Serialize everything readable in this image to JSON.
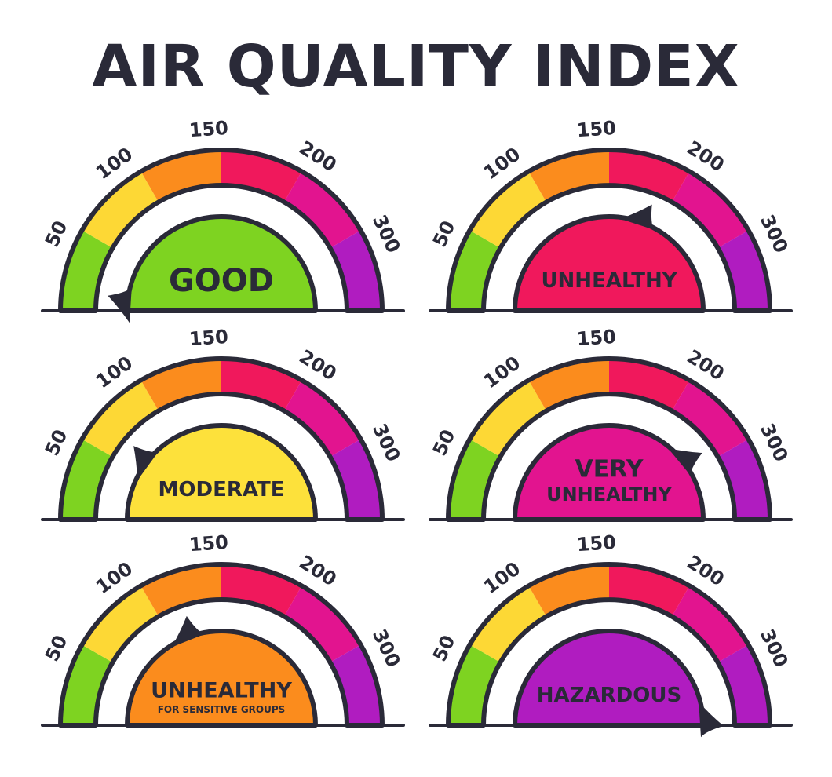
{
  "title": "AIR QUALITY INDEX",
  "scale": {
    "ticks": [
      "50",
      "100",
      "150",
      "200",
      "300"
    ],
    "bands": [
      {
        "color": "#7ed321"
      },
      {
        "color": "#fdd835"
      },
      {
        "color": "#fb8c1d"
      },
      {
        "color": "#f0185c"
      },
      {
        "color": "#e2148f"
      },
      {
        "color": "#b01cc0"
      }
    ],
    "outline_color": "#2a2a38"
  },
  "gauges": [
    {
      "label_lines": [
        "GOOD"
      ],
      "color": "#7ed321",
      "needle_level": 0.02
    },
    {
      "label_lines": [
        "UNHEALTHY"
      ],
      "color": "#f0185c",
      "needle_level": 0.6
    },
    {
      "label_lines": [
        "MODERATE"
      ],
      "color": "#fde13b",
      "needle_level": 0.2
    },
    {
      "label_lines": [
        "VERY",
        "UNHEALTHY"
      ],
      "color": "#e2148f",
      "needle_level": 0.78
    },
    {
      "label_lines": [
        "UNHEALTHY",
        "FOR SENSITIVE GROUPS"
      ],
      "color": "#fb8c1d",
      "needle_level": 0.38
    },
    {
      "label_lines": [
        "HAZARDOUS"
      ],
      "color": "#b01cc0",
      "needle_level": 0.98
    }
  ]
}
